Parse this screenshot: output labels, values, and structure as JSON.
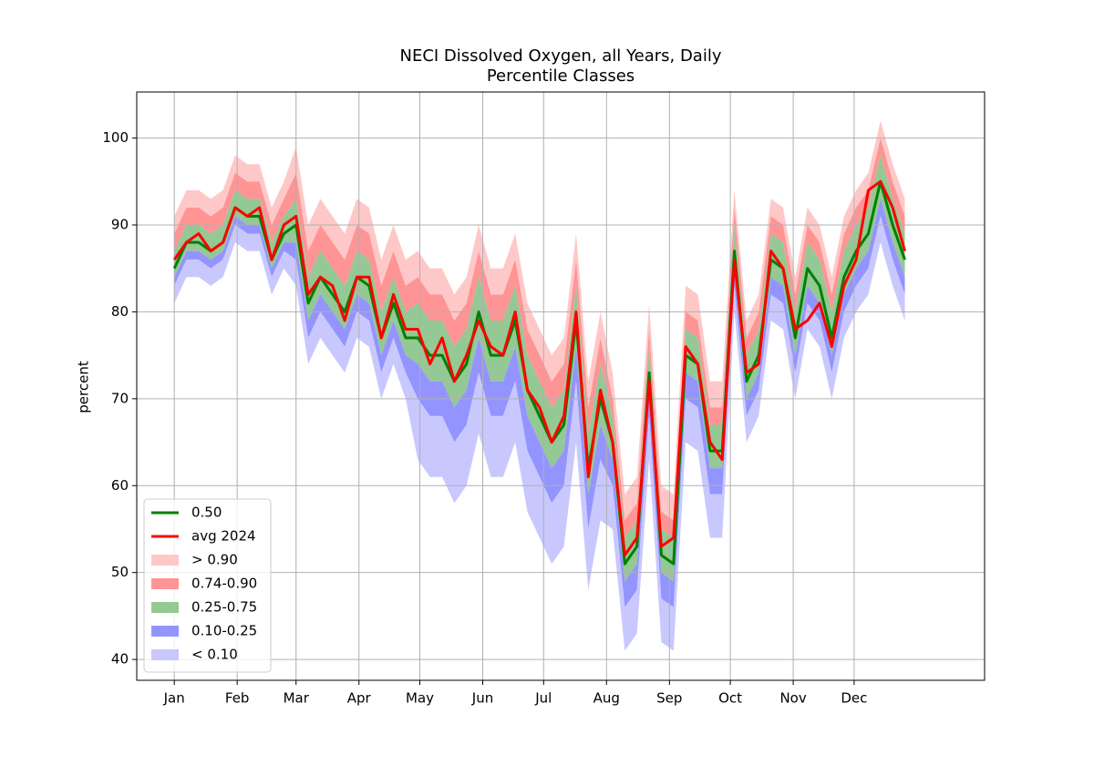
{
  "chart_data": {
    "type": "line",
    "title": "NECI Dissolved Oxygen, all Years, Daily",
    "subtitle": "Percentile Classes",
    "ylabel": "percent",
    "x": [
      1,
      7,
      13,
      19,
      25,
      31,
      37,
      43,
      49,
      55,
      61,
      67,
      73,
      79,
      85,
      91,
      97,
      103,
      109,
      115,
      121,
      127,
      133,
      139,
      145,
      151,
      157,
      163,
      169,
      175,
      181,
      187,
      193,
      199,
      205,
      211,
      217,
      223,
      229,
      235,
      241,
      247,
      253,
      259,
      265,
      271,
      277,
      283,
      289,
      295,
      301,
      307,
      313,
      319,
      325,
      331,
      337,
      343,
      349,
      355,
      361
    ],
    "xlim": [
      -17.5,
      400.3
    ],
    "ylim": [
      37.6,
      105.3
    ],
    "xticks": [
      {
        "value": 1,
        "label": "Jan"
      },
      {
        "value": 32,
        "label": "Feb"
      },
      {
        "value": 61,
        "label": "Mar"
      },
      {
        "value": 92,
        "label": "Apr"
      },
      {
        "value": 122,
        "label": "May"
      },
      {
        "value": 153,
        "label": "Jun"
      },
      {
        "value": 183,
        "label": "Jul"
      },
      {
        "value": 214,
        "label": "Aug"
      },
      {
        "value": 245,
        "label": "Sep"
      },
      {
        "value": 275,
        "label": "Oct"
      },
      {
        "value": 306,
        "label": "Nov"
      },
      {
        "value": 336,
        "label": "Dec"
      }
    ],
    "yticks": [
      40,
      50,
      60,
      70,
      80,
      90,
      100
    ],
    "grid": true,
    "legend": "lower left",
    "series": [
      {
        "name": "0.50",
        "color": "#008000",
        "values": [
          85,
          88,
          88,
          87,
          88,
          92,
          91,
          91,
          86,
          89,
          90,
          81,
          84,
          82,
          80,
          84,
          83,
          77,
          81,
          77,
          77,
          75,
          75,
          72,
          74,
          80,
          75,
          75,
          79,
          71,
          68,
          65,
          67,
          79,
          62,
          70,
          65,
          51,
          53,
          73,
          52,
          51,
          75,
          74,
          64,
          64,
          87,
          72,
          75,
          86,
          85,
          77,
          85,
          83,
          77,
          84,
          87,
          89,
          95,
          90,
          86
        ]
      },
      {
        "name": "avg 2024",
        "color": "#ff0000",
        "values": [
          86,
          88,
          89,
          87,
          88,
          92,
          91,
          92,
          86,
          90,
          91,
          82,
          84,
          83,
          79,
          84,
          84,
          77,
          82,
          78,
          78,
          74,
          77,
          72,
          75,
          79,
          76,
          75,
          80,
          71,
          69,
          65,
          68,
          80,
          61,
          71,
          65,
          52,
          54,
          72,
          53,
          54,
          76,
          74,
          65,
          63,
          86,
          73,
          74,
          87,
          85,
          78,
          79,
          81,
          76,
          83,
          86,
          94,
          95,
          92,
          87
        ]
      }
    ],
    "bands": [
      {
        "name": "> 0.90",
        "color": "#ffc8c8",
        "low": [
          89,
          92,
          92,
          91,
          92,
          96,
          95,
          95,
          90,
          93,
          96,
          87,
          90,
          88,
          86,
          90,
          89,
          83,
          87,
          83,
          84,
          82,
          82,
          79,
          81,
          87,
          82,
          82,
          86,
          78,
          75,
          72,
          74,
          86,
          69,
          77,
          70,
          56,
          58,
          78,
          57,
          56,
          80,
          79,
          69,
          69,
          92,
          77,
          80,
          91,
          90,
          82,
          90,
          88,
          82,
          89,
          92,
          94,
          100,
          95,
          91
        ],
        "high": [
          91,
          94,
          94,
          93,
          94,
          98,
          97,
          97,
          92,
          95,
          99,
          90,
          93,
          91,
          89,
          93,
          92,
          86,
          90,
          86,
          87,
          85,
          85,
          82,
          84,
          90,
          85,
          85,
          89,
          81,
          78,
          75,
          77,
          89,
          72,
          80,
          73,
          59,
          61,
          81,
          60,
          59,
          83,
          82,
          72,
          72,
          94,
          79,
          82,
          93,
          92,
          84,
          92,
          90,
          84,
          91,
          94,
          96,
          102,
          97,
          93
        ]
      },
      {
        "name": "0.74-0.90",
        "color": "#ff9494",
        "low": [
          87,
          90,
          90,
          89,
          90,
          94,
          93,
          93,
          88,
          91,
          93,
          84,
          87,
          85,
          83,
          87,
          86,
          80,
          84,
          80,
          81,
          79,
          79,
          76,
          78,
          84,
          79,
          79,
          83,
          75,
          72,
          69,
          71,
          83,
          66,
          74,
          68,
          54,
          56,
          76,
          55,
          54,
          78,
          77,
          67,
          67,
          90,
          75,
          78,
          89,
          88,
          80,
          88,
          86,
          80,
          87,
          90,
          92,
          98,
          93,
          89
        ],
        "high": [
          89,
          92,
          92,
          91,
          92,
          96,
          95,
          95,
          90,
          93,
          96,
          87,
          90,
          88,
          86,
          90,
          89,
          83,
          87,
          83,
          84,
          82,
          82,
          79,
          81,
          87,
          82,
          82,
          86,
          78,
          75,
          72,
          74,
          86,
          69,
          77,
          70,
          56,
          58,
          78,
          57,
          56,
          80,
          79,
          69,
          69,
          92,
          77,
          80,
          91,
          90,
          82,
          90,
          88,
          82,
          89,
          92,
          94,
          100,
          95,
          91
        ]
      },
      {
        "name": "0.25-0.75",
        "color": "#94c894",
        "low": [
          84,
          87,
          87,
          86,
          87,
          91,
          90,
          90,
          85,
          88,
          88,
          79,
          82,
          80,
          78,
          82,
          81,
          75,
          79,
          75,
          74,
          72,
          72,
          69,
          71,
          77,
          72,
          72,
          76,
          68,
          65,
          62,
          64,
          76,
          59,
          67,
          63,
          49,
          51,
          71,
          50,
          49,
          73,
          72,
          62,
          62,
          85,
          70,
          73,
          84,
          83,
          75,
          83,
          81,
          75,
          82,
          85,
          87,
          93,
          88,
          84
        ],
        "high": [
          87,
          90,
          90,
          89,
          90,
          94,
          93,
          93,
          88,
          91,
          93,
          84,
          87,
          85,
          83,
          87,
          86,
          80,
          84,
          80,
          81,
          79,
          79,
          76,
          78,
          84,
          79,
          79,
          83,
          75,
          72,
          69,
          71,
          83,
          66,
          74,
          68,
          54,
          56,
          76,
          55,
          54,
          78,
          77,
          67,
          67,
          90,
          75,
          78,
          89,
          88,
          80,
          88,
          86,
          80,
          87,
          90,
          92,
          98,
          93,
          89
        ]
      },
      {
        "name": "0.10-0.25",
        "color": "#9494ff",
        "low": [
          83,
          86,
          86,
          85,
          86,
          90,
          89,
          89,
          84,
          87,
          86,
          77,
          80,
          78,
          76,
          80,
          79,
          73,
          77,
          73,
          70,
          68,
          68,
          65,
          67,
          73,
          68,
          68,
          72,
          64,
          61,
          58,
          60,
          72,
          55,
          63,
          60,
          46,
          48,
          68,
          47,
          46,
          70,
          69,
          59,
          59,
          83,
          68,
          71,
          82,
          81,
          73,
          81,
          79,
          73,
          80,
          83,
          85,
          91,
          86,
          82
        ],
        "high": [
          84,
          87,
          87,
          86,
          87,
          91,
          90,
          90,
          85,
          88,
          88,
          79,
          82,
          80,
          78,
          82,
          81,
          75,
          79,
          75,
          74,
          72,
          72,
          69,
          71,
          77,
          72,
          72,
          76,
          68,
          65,
          62,
          64,
          76,
          59,
          67,
          63,
          49,
          51,
          71,
          50,
          49,
          73,
          72,
          62,
          62,
          85,
          70,
          73,
          84,
          83,
          75,
          83,
          81,
          75,
          82,
          85,
          87,
          93,
          88,
          84
        ]
      },
      {
        "name": "< 0.10",
        "color": "#c8c8ff",
        "low": [
          81,
          84,
          84,
          83,
          84,
          88,
          87,
          87,
          82,
          85,
          83,
          74,
          77,
          75,
          73,
          77,
          76,
          70,
          74,
          70,
          63,
          61,
          61,
          58,
          60,
          66,
          61,
          61,
          65,
          57,
          54,
          51,
          53,
          65,
          48,
          56,
          55,
          41,
          43,
          63,
          42,
          41,
          65,
          64,
          54,
          54,
          80,
          65,
          68,
          79,
          78,
          70,
          78,
          76,
          70,
          77,
          80,
          82,
          88,
          83,
          79
        ],
        "high": [
          83,
          86,
          86,
          85,
          86,
          90,
          89,
          89,
          84,
          87,
          86,
          77,
          80,
          78,
          76,
          80,
          79,
          73,
          77,
          73,
          70,
          68,
          68,
          65,
          67,
          73,
          68,
          68,
          72,
          64,
          61,
          58,
          60,
          72,
          55,
          63,
          60,
          46,
          48,
          68,
          47,
          46,
          70,
          69,
          59,
          59,
          83,
          68,
          71,
          82,
          81,
          73,
          81,
          79,
          73,
          80,
          83,
          85,
          91,
          86,
          82
        ]
      }
    ]
  }
}
